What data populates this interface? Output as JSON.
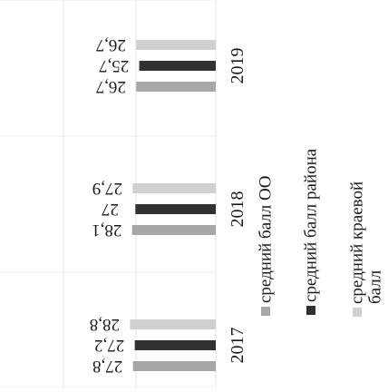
{
  "chart_data": {
    "type": "bar",
    "orientation": "horizontal",
    "rotated": "page rotated 90 degrees",
    "categories": [
      "2017",
      "2018",
      "2019"
    ],
    "series": [
      {
        "name": "средний балл ОО",
        "color": "#a7a7a7",
        "values": [
          27.8,
          28.1,
          26.7
        ]
      },
      {
        "name": "средний балл района",
        "color": "#2f3133",
        "values": [
          27.2,
          27.0,
          25.7
        ]
      },
      {
        "name": "средний краевой балл",
        "color": "#cfd1d0",
        "values": [
          28.8,
          27.9,
          26.7
        ]
      }
    ],
    "data_labels": [
      [
        "27,8",
        "27,2",
        "28,8"
      ],
      [
        "28,1",
        "27",
        "27,9"
      ],
      [
        "26,7",
        "25,7",
        "26,7"
      ]
    ],
    "legend_position": "right",
    "grid": true,
    "title": "",
    "xlabel": "",
    "ylabel": ""
  }
}
